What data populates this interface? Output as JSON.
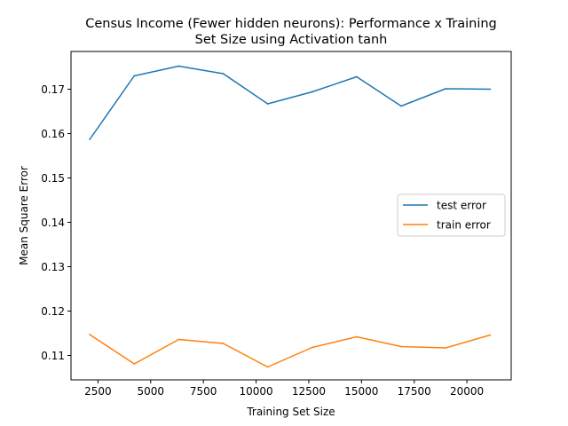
{
  "chart_data": {
    "type": "line",
    "title_line1": "Census Income (Fewer hidden neurons): Performance x Training",
    "title_line2": "Set Size using Activation tanh",
    "xlabel": "Training Set Size",
    "ylabel": "Mean Square Error",
    "xlim": [
      1220,
      22100
    ],
    "ylim": [
      0.1045,
      0.1785
    ],
    "x_ticks": [
      2500,
      5000,
      7500,
      10000,
      12500,
      15000,
      17500,
      20000
    ],
    "x_tick_labels": [
      "2500",
      "5000",
      "7500",
      "10000",
      "12500",
      "15000",
      "17500",
      "20000"
    ],
    "y_ticks": [
      0.11,
      0.12,
      0.13,
      0.14,
      0.15,
      0.16,
      0.17
    ],
    "y_tick_labels": [
      "0.11",
      "0.12",
      "0.13",
      "0.14",
      "0.15",
      "0.16",
      "0.17"
    ],
    "x": [
      2110,
      4220,
      6330,
      8440,
      10550,
      12660,
      14770,
      16880,
      18990,
      21100
    ],
    "series": [
      {
        "name": "test error",
        "color": "#1f77b4",
        "values": [
          0.1587,
          0.173,
          0.1752,
          0.1735,
          0.1667,
          0.1694,
          0.1728,
          0.1662,
          0.1701,
          0.17
        ]
      },
      {
        "name": "train error",
        "color": "#ff7f0e",
        "values": [
          0.1147,
          0.1081,
          0.1136,
          0.1127,
          0.1074,
          0.1118,
          0.1142,
          0.112,
          0.1117,
          0.1146
        ]
      }
    ],
    "legend_position": "center-right",
    "grid": false
  }
}
